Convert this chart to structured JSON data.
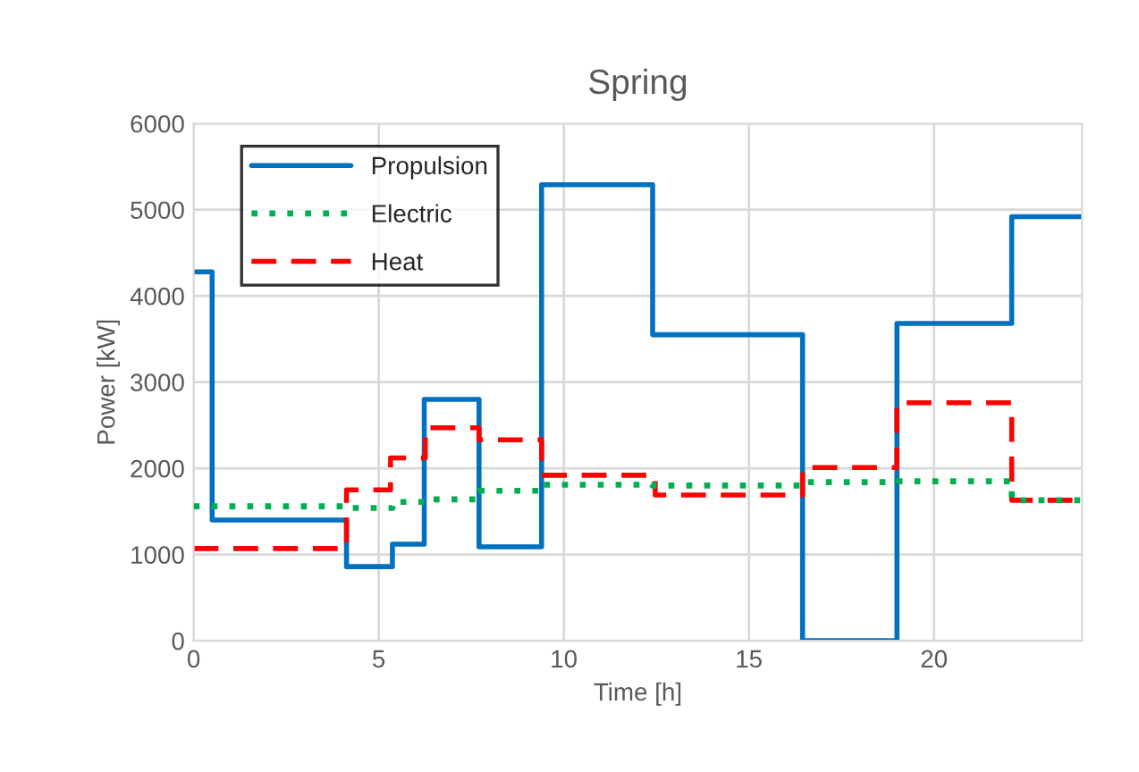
{
  "chart_data": {
    "type": "step",
    "title": "Spring",
    "xlabel": "Time [h]",
    "ylabel": "Power [kW]",
    "xlim": [
      0,
      24
    ],
    "xticks": [
      0,
      5,
      10,
      15,
      20
    ],
    "ylim": [
      0,
      6000
    ],
    "yticks": [
      0,
      1000,
      2000,
      3000,
      4000,
      5000,
      6000
    ],
    "grid": true,
    "legend": "top left",
    "series": [
      {
        "name": "Propulsion",
        "color": "#0070c0",
        "line_style": "solid",
        "x": [
          0,
          0.5,
          4.13,
          5.37,
          6.23,
          7.71,
          9.4,
          12.4,
          16.45,
          19.0,
          22.1,
          24
        ],
        "values": [
          4280,
          1400,
          860,
          1120,
          2800,
          1090,
          5290,
          3550,
          0,
          3680,
          4920,
          4920
        ]
      },
      {
        "name": "Electric",
        "color": "#00b050",
        "line_style": "dotted",
        "x": [
          0,
          4.13,
          5.37,
          6.26,
          7.71,
          9.4,
          12.4,
          16.45,
          19.0,
          22.1,
          24
        ],
        "values": [
          1560,
          1540,
          1610,
          1640,
          1740,
          1810,
          1800,
          1840,
          1850,
          1630,
          1630
        ]
      },
      {
        "name": "Heat",
        "color": "#ff0000",
        "line_style": "dashed",
        "x": [
          0,
          4.13,
          5.32,
          6.26,
          7.71,
          9.4,
          12.47,
          16.45,
          19.0,
          22.1,
          24
        ],
        "values": [
          1070,
          1750,
          2120,
          2470,
          2330,
          1920,
          1690,
          2010,
          2760,
          1630,
          1630
        ]
      }
    ]
  }
}
